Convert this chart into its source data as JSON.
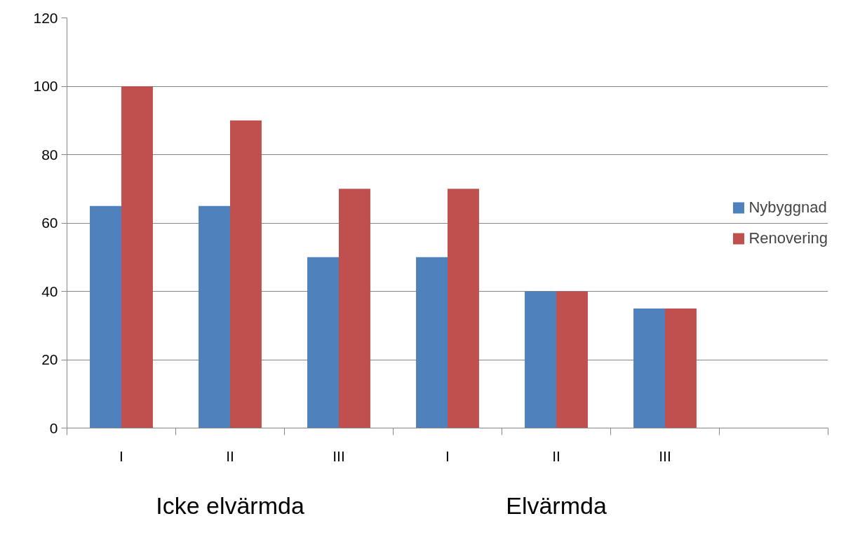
{
  "chart_data": {
    "type": "bar",
    "categories": [
      "I",
      "II",
      "III",
      "I",
      "II",
      "III",
      null
    ],
    "series": [
      {
        "name": "Nybyggnad",
        "color": "#4f81bd",
        "values": [
          65,
          65,
          50,
          50,
          40,
          35,
          null
        ]
      },
      {
        "name": "Renovering",
        "color": "#c0504d",
        "values": [
          100,
          90,
          70,
          70,
          40,
          35,
          null
        ]
      }
    ],
    "ylim": [
      0,
      120
    ],
    "yticks": [
      0,
      20,
      40,
      60,
      80,
      100,
      120
    ],
    "grid": "y",
    "legend": "right",
    "annotations": [
      "Icke elvärmda",
      "Elvärmda"
    ]
  }
}
